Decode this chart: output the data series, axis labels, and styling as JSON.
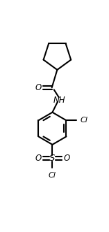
{
  "line_color": "#000000",
  "bg_color": "#ffffff",
  "line_width": 1.5,
  "font_size": 8,
  "figsize": [
    1.57,
    3.32
  ],
  "dpi": 100,
  "xlim": [
    0,
    1.57
  ],
  "ylim": [
    0,
    3.32
  ]
}
